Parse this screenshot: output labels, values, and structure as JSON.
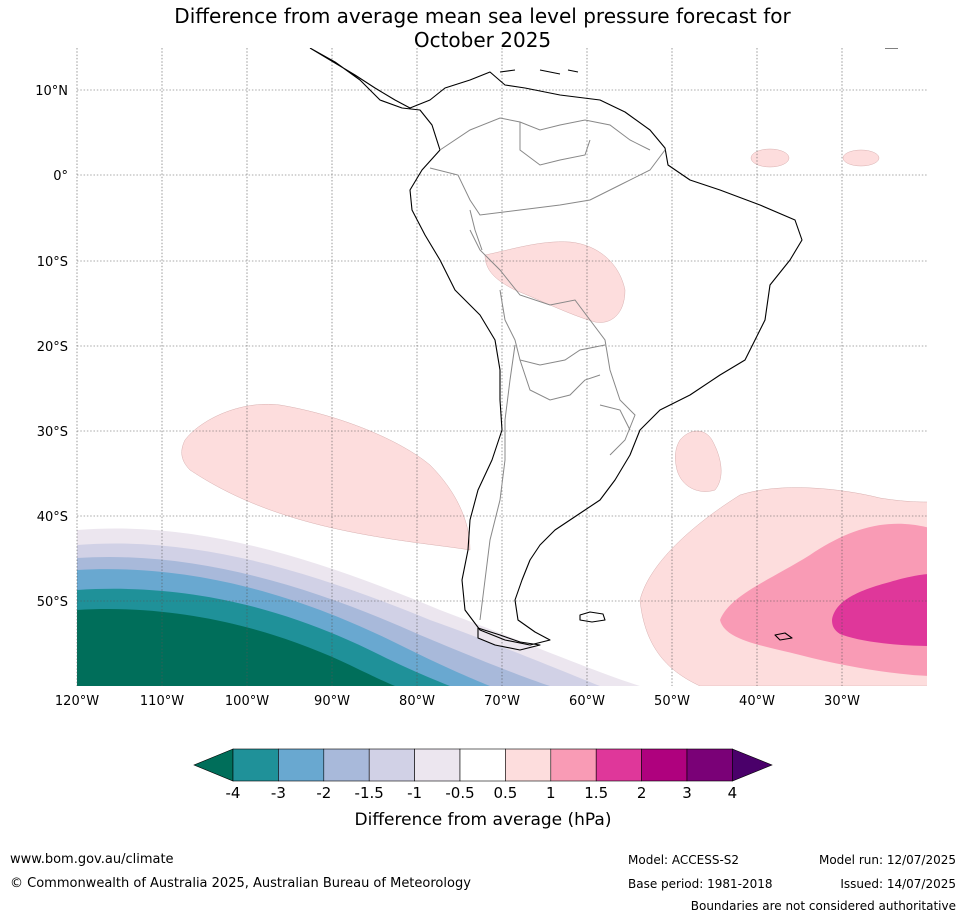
{
  "title_line1": "Difference from average mean sea level pressure forecast for",
  "title_line2": "October 2025",
  "lat_labels": [
    "10°N",
    "0°",
    "10°S",
    "20°S",
    "30°S",
    "40°S",
    "50°S"
  ],
  "lon_labels": [
    "120°W",
    "110°W",
    "100°W",
    "90°W",
    "80°W",
    "70°W",
    "60°W",
    "50°W",
    "40°W",
    "30°W"
  ],
  "colorbar": {
    "label": "Difference from average (hPa)",
    "ticks": [
      "-4",
      "-3",
      "-2",
      "-1.5",
      "-1",
      "-0.5",
      "0.5",
      "1",
      "1.5",
      "2",
      "3",
      "4"
    ],
    "colors": {
      "below_min": "#006e5a",
      "-4_-3": "#1f9199",
      "-3_-2": "#69a8d0",
      "-2_-1.5": "#a8b9da",
      "-1.5_-1": "#d1d1e6",
      "-1_-0.5": "#ece6ef",
      "-0.5_0.5": "#ffffff",
      "0.5_1": "#fddddd",
      "1_1.5": "#f99bb5",
      "1.5_2": "#df379a",
      "2_3": "#af017e",
      "3_4": "#7a0177",
      "above_max": "#4a006a"
    }
  },
  "footer": {
    "website": "www.bom.gov.au/climate",
    "copyright": "© Commonwealth of Australia 2025, Australian Bureau of Meteorology",
    "model": "Model: ACCESS-S2",
    "base_period": "Base period: 1981-2018",
    "model_run": "Model run: 12/07/2025",
    "issued": "Issued: 14/07/2025",
    "disclaimer": "Boundaries are not considered authoritative"
  }
}
